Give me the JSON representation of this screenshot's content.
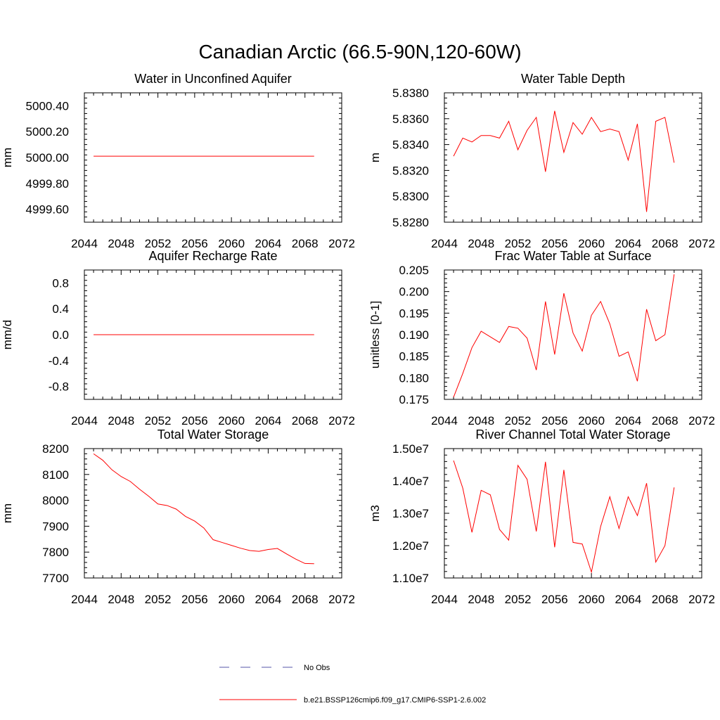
{
  "figure": {
    "title": "Canadian Arctic (66.5-90N,120-60W)"
  },
  "legend": {
    "entries": [
      {
        "label": "No Obs",
        "color": "#5555aa",
        "style": "dashed"
      },
      {
        "label": "b.e21.BSSP126cmip6.f09_g17.CMIP6-SSP1-2.6.002",
        "color": "#ff0000",
        "style": "solid"
      }
    ]
  },
  "chart_data": [
    {
      "type": "line",
      "title": "Water in Unconfined Aquifer",
      "ylabel": "mm",
      "xlim": [
        2044,
        2072
      ],
      "ylim": [
        4999.5,
        5000.5
      ],
      "xticks": [
        2044,
        2048,
        2052,
        2056,
        2060,
        2064,
        2068,
        2072
      ],
      "yticks": [
        4999.6,
        4999.8,
        5000.0,
        5000.2,
        5000.4
      ],
      "ytick_labels": [
        "4999.60",
        "4999.80",
        "5000.00",
        "5000.20",
        "5000.40"
      ],
      "series": [
        {
          "color": "#ff0000",
          "x": [
            2045,
            2069
          ],
          "y": [
            5000.01,
            5000.01
          ]
        }
      ]
    },
    {
      "type": "line",
      "title": "Water Table Depth",
      "ylabel": "m",
      "xlim": [
        2044,
        2072
      ],
      "ylim": [
        5.828,
        5.838
      ],
      "xticks": [
        2044,
        2048,
        2052,
        2056,
        2060,
        2064,
        2068,
        2072
      ],
      "yticks": [
        5.828,
        5.83,
        5.832,
        5.834,
        5.836,
        5.838
      ],
      "ytick_labels": [
        "5.8280",
        "5.8300",
        "5.8320",
        "5.8340",
        "5.8360",
        "5.8380"
      ],
      "series": [
        {
          "color": "#ff0000",
          "x": [
            2045,
            2046,
            2047,
            2048,
            2049,
            2050,
            2051,
            2052,
            2053,
            2054,
            2055,
            2056,
            2057,
            2058,
            2059,
            2060,
            2061,
            2062,
            2063,
            2064,
            2065,
            2066,
            2067,
            2068,
            2069
          ],
          "y": [
            5.8331,
            5.8345,
            5.8342,
            5.8347,
            5.8347,
            5.8345,
            5.8358,
            5.8336,
            5.8351,
            5.8361,
            5.8319,
            5.8366,
            5.8334,
            5.8357,
            5.8348,
            5.8361,
            5.835,
            5.8352,
            5.835,
            5.8328,
            5.8356,
            5.8288,
            5.8358,
            5.8361,
            5.8326
          ]
        }
      ]
    },
    {
      "type": "line",
      "title": "Aquifer Recharge Rate",
      "ylabel": "mm/d",
      "xlim": [
        2044,
        2072
      ],
      "ylim": [
        -1.0,
        1.0
      ],
      "xticks": [
        2044,
        2048,
        2052,
        2056,
        2060,
        2064,
        2068,
        2072
      ],
      "yticks": [
        -0.8,
        -0.4,
        0.0,
        0.4,
        0.8
      ],
      "ytick_labels": [
        "-0.8",
        "-0.4",
        "0.0",
        "0.4",
        "0.8"
      ],
      "series": [
        {
          "color": "#ff0000",
          "x": [
            2045,
            2069
          ],
          "y": [
            0.0,
            0.0
          ]
        }
      ]
    },
    {
      "type": "line",
      "title": "Frac Water Table at Surface",
      "ylabel": "unitless [0-1]",
      "xlim": [
        2044,
        2072
      ],
      "ylim": [
        0.175,
        0.205
      ],
      "xticks": [
        2044,
        2048,
        2052,
        2056,
        2060,
        2064,
        2068,
        2072
      ],
      "yticks": [
        0.175,
        0.18,
        0.185,
        0.19,
        0.195,
        0.2,
        0.205
      ],
      "ytick_labels": [
        "0.175",
        "0.180",
        "0.185",
        "0.190",
        "0.195",
        "0.200",
        "0.205"
      ],
      "series": [
        {
          "color": "#ff0000",
          "x": [
            2045,
            2046,
            2047,
            2048,
            2049,
            2050,
            2051,
            2052,
            2053,
            2054,
            2055,
            2056,
            2057,
            2058,
            2059,
            2060,
            2061,
            2062,
            2063,
            2064,
            2065,
            2066,
            2067,
            2068,
            2069
          ],
          "y": [
            0.1755,
            0.181,
            0.187,
            0.1908,
            0.1895,
            0.1882,
            0.1919,
            0.1915,
            0.1892,
            0.1818,
            0.1977,
            0.1854,
            0.1996,
            0.1904,
            0.1862,
            0.1945,
            0.1977,
            0.1925,
            0.185,
            0.186,
            0.1792,
            0.1959,
            0.1886,
            0.19,
            0.204
          ]
        }
      ]
    },
    {
      "type": "line",
      "title": "Total Water Storage",
      "ylabel": "mm",
      "xlim": [
        2044,
        2072
      ],
      "ylim": [
        7700,
        8200
      ],
      "xticks": [
        2044,
        2048,
        2052,
        2056,
        2060,
        2064,
        2068,
        2072
      ],
      "yticks": [
        7700,
        7800,
        7900,
        8000,
        8100,
        8200
      ],
      "ytick_labels": [
        "7700",
        "7800",
        "7900",
        "8000",
        "8100",
        "8200"
      ],
      "series": [
        {
          "color": "#ff0000",
          "x": [
            2045,
            2046,
            2047,
            2048,
            2049,
            2050,
            2051,
            2052,
            2053,
            2054,
            2055,
            2056,
            2057,
            2058,
            2059,
            2060,
            2061,
            2062,
            2063,
            2064,
            2065,
            2066,
            2067,
            2068,
            2069
          ],
          "y": [
            8180,
            8155,
            8118,
            8092,
            8073,
            8043,
            8016,
            7986,
            7980,
            7966,
            7938,
            7920,
            7893,
            7848,
            7837,
            7826,
            7815,
            7806,
            7803,
            7810,
            7814,
            7793,
            7773,
            7756,
            7755
          ]
        }
      ]
    },
    {
      "type": "line",
      "title": "River Channel Total Water Storage",
      "ylabel": "m3",
      "xlim": [
        2044,
        2072
      ],
      "ylim": [
        11000000,
        15000000
      ],
      "xticks": [
        2044,
        2048,
        2052,
        2056,
        2060,
        2064,
        2068,
        2072
      ],
      "yticks": [
        11000000,
        12000000,
        13000000,
        14000000,
        15000000
      ],
      "ytick_labels": [
        "1.10e7",
        "1.20e7",
        "1.30e7",
        "1.40e7",
        "1.50e7"
      ],
      "series": [
        {
          "color": "#ff0000",
          "x": [
            2045,
            2046,
            2047,
            2048,
            2049,
            2050,
            2051,
            2052,
            2053,
            2054,
            2055,
            2056,
            2057,
            2058,
            2059,
            2060,
            2061,
            2062,
            2063,
            2064,
            2065,
            2066,
            2067,
            2068,
            2069
          ],
          "y": [
            14630000,
            13780000,
            12410000,
            13710000,
            13570000,
            12500000,
            12170000,
            14480000,
            14050000,
            12440000,
            14590000,
            11950000,
            14340000,
            12100000,
            12050000,
            11180000,
            12590000,
            13510000,
            12530000,
            13510000,
            12930000,
            13930000,
            11490000,
            12000000,
            13800000
          ]
        }
      ]
    }
  ]
}
